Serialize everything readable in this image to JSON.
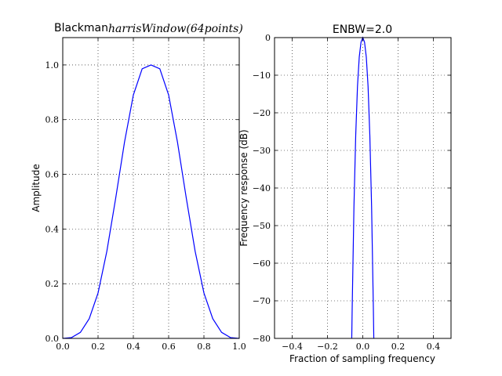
{
  "chart_data": [
    {
      "type": "line",
      "title_prefix": "Blackman",
      "title_math": "harrisWindow(64points)",
      "xlabel": "",
      "ylabel": "Amplitude",
      "xlim": [
        0.0,
        1.0
      ],
      "ylim": [
        0.0,
        1.1
      ],
      "xticks": [
        "0.0",
        "0.2",
        "0.4",
        "0.6",
        "0.8",
        "1.0"
      ],
      "yticks": [
        "0.0",
        "0.2",
        "0.4",
        "0.6",
        "0.8",
        "1.0"
      ],
      "grid": true,
      "series": [
        {
          "color": "#0000ff",
          "x": [
            0.0,
            0.05,
            0.1,
            0.15,
            0.2,
            0.25,
            0.3,
            0.35,
            0.4,
            0.45,
            0.5,
            0.55,
            0.6,
            0.65,
            0.7,
            0.75,
            0.8,
            0.85,
            0.9,
            0.95,
            1.0
          ],
          "y": [
            0.0,
            0.003,
            0.022,
            0.072,
            0.166,
            0.319,
            0.513,
            0.718,
            0.89,
            0.986,
            1.0,
            0.986,
            0.89,
            0.718,
            0.513,
            0.319,
            0.166,
            0.072,
            0.022,
            0.003,
            0.0
          ]
        }
      ]
    },
    {
      "type": "line",
      "title": "ENBW=2.0",
      "xlabel": "Fraction of sampling frequency",
      "ylabel": "Frequency response (dB)",
      "xlim": [
        -0.5,
        0.5
      ],
      "ylim": [
        -80,
        0
      ],
      "xticks": [
        "−0.4",
        "−0.2",
        "0.0",
        "0.2",
        "0.4"
      ],
      "yticks": [
        "0",
        "−10",
        "−20",
        "−30",
        "−40",
        "−50",
        "−60",
        "−70",
        "−80"
      ],
      "grid": true,
      "series": [
        {
          "color": "#0000ff",
          "x": [
            -0.0625,
            -0.06,
            -0.05,
            -0.04,
            -0.03,
            -0.02,
            -0.01,
            0.0,
            0.01,
            0.02,
            0.03,
            0.04,
            0.05,
            0.06,
            0.0625
          ],
          "y": [
            -80,
            -72.0,
            -45.0,
            -26.0,
            -13.0,
            -5.2,
            -1.2,
            0.0,
            -1.2,
            -5.2,
            -13.0,
            -26.0,
            -45.0,
            -72.0,
            -80
          ]
        }
      ]
    }
  ]
}
